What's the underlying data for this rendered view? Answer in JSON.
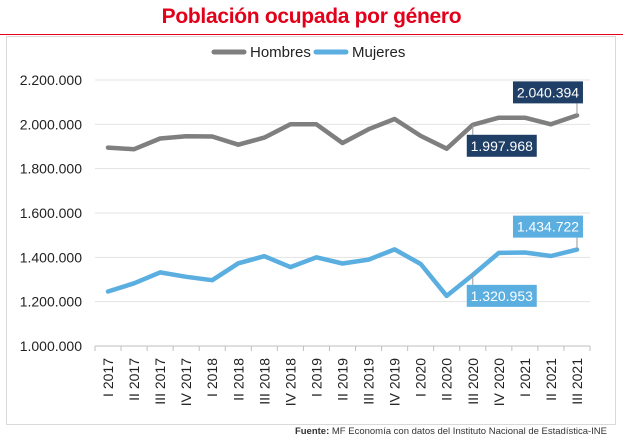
{
  "chart_data": {
    "type": "line",
    "title": "Población ocupada por género",
    "categories": [
      "I 2017",
      "II 2017",
      "III 2017",
      "IV 2017",
      "I 2018",
      "II 2018",
      "III 2018",
      "IV 2018",
      "I 2019",
      "II 2019",
      "III 2019",
      "IV 2019",
      "I 2020",
      "II 2020",
      "III 2020",
      "IV 2020",
      "I 2021",
      "II 2021",
      "III 2021"
    ],
    "series": [
      {
        "name": "Hombres",
        "color": "#7f7f7f",
        "values": [
          1895000,
          1888000,
          1936000,
          1946000,
          1945000,
          1908000,
          1940000,
          2000000,
          2000000,
          1916000,
          1978000,
          2024000,
          1948000,
          1890000,
          1997968,
          2030000,
          2030000,
          2000000,
          2040394
        ]
      },
      {
        "name": "Mujeres",
        "color": "#5aaee0",
        "values": [
          1246000,
          1283000,
          1332000,
          1312000,
          1297000,
          1373000,
          1405000,
          1356000,
          1400000,
          1372000,
          1390000,
          1436000,
          1370000,
          1226000,
          1320953,
          1420000,
          1422000,
          1406000,
          1434722
        ]
      }
    ],
    "yticks": [
      "1.000.000",
      "1.200.000",
      "1.400.000",
      "1.600.000",
      "1.800.000",
      "2.000.000",
      "2.200.000"
    ],
    "ylim": [
      1000000,
      2200000
    ],
    "legend": "top-center",
    "grid": true,
    "annotations": [
      {
        "text": "1.997.968",
        "series": 0,
        "index": 14,
        "color": "#1f3f66"
      },
      {
        "text": "2.040.394",
        "series": 0,
        "index": 18,
        "color": "#1f3f66"
      },
      {
        "text": "1.320.953",
        "series": 1,
        "index": 14,
        "color": "#5aaee0"
      },
      {
        "text": "1.434.722",
        "series": 1,
        "index": 18,
        "color": "#5aaee0"
      }
    ]
  },
  "footer": {
    "label": "Fuente:",
    "text": " MF Economía con datos del Instituto Nacional de Estadística-INE"
  }
}
